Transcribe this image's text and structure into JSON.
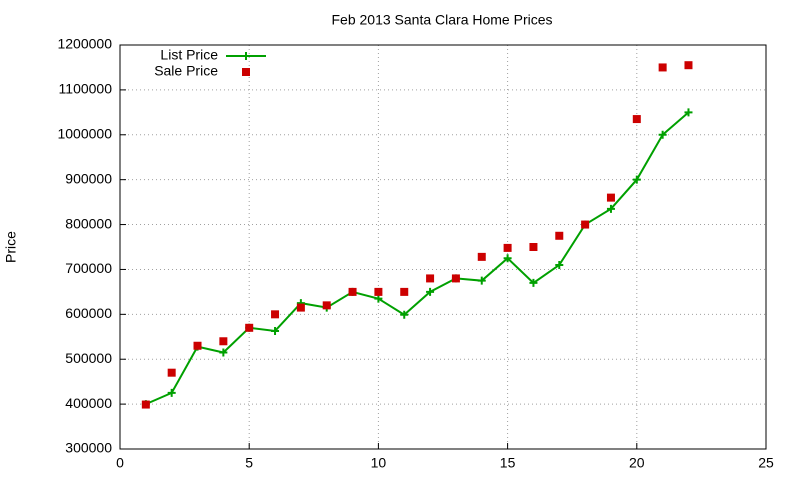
{
  "chart_data": {
    "type": "line",
    "title": "Feb 2013 Santa Clara Home Prices",
    "y_label": "Price",
    "x": [
      1,
      2,
      3,
      4,
      5,
      6,
      7,
      8,
      9,
      10,
      11,
      12,
      13,
      14,
      15,
      16,
      17,
      18,
      19,
      20,
      21,
      22
    ],
    "series": [
      {
        "name": "List Price",
        "color": "#00a000",
        "style": "linespoints",
        "values": [
          400000,
          425000,
          528000,
          515000,
          570000,
          563000,
          625000,
          615000,
          650000,
          635000,
          599000,
          650000,
          680000,
          675000,
          725000,
          670000,
          710000,
          800000,
          835000,
          900000,
          1000000,
          1050000
        ]
      },
      {
        "name": "Sale Price",
        "color": "#cc0000",
        "style": "points",
        "values": [
          399000,
          470000,
          530000,
          540000,
          570000,
          600000,
          615000,
          620000,
          650000,
          650000,
          650000,
          680000,
          680000,
          728000,
          748000,
          750000,
          775000,
          800000,
          860000,
          1035000,
          1150000,
          1155000
        ]
      }
    ],
    "xlim": [
      0,
      25
    ],
    "xticks": [
      0,
      5,
      10,
      15,
      20,
      25
    ],
    "ylim": [
      300000,
      1200000
    ],
    "yticks": [
      300000,
      400000,
      500000,
      600000,
      700000,
      800000,
      900000,
      1000000,
      1100000,
      1200000
    ],
    "grid": true,
    "legend": "top-left"
  }
}
